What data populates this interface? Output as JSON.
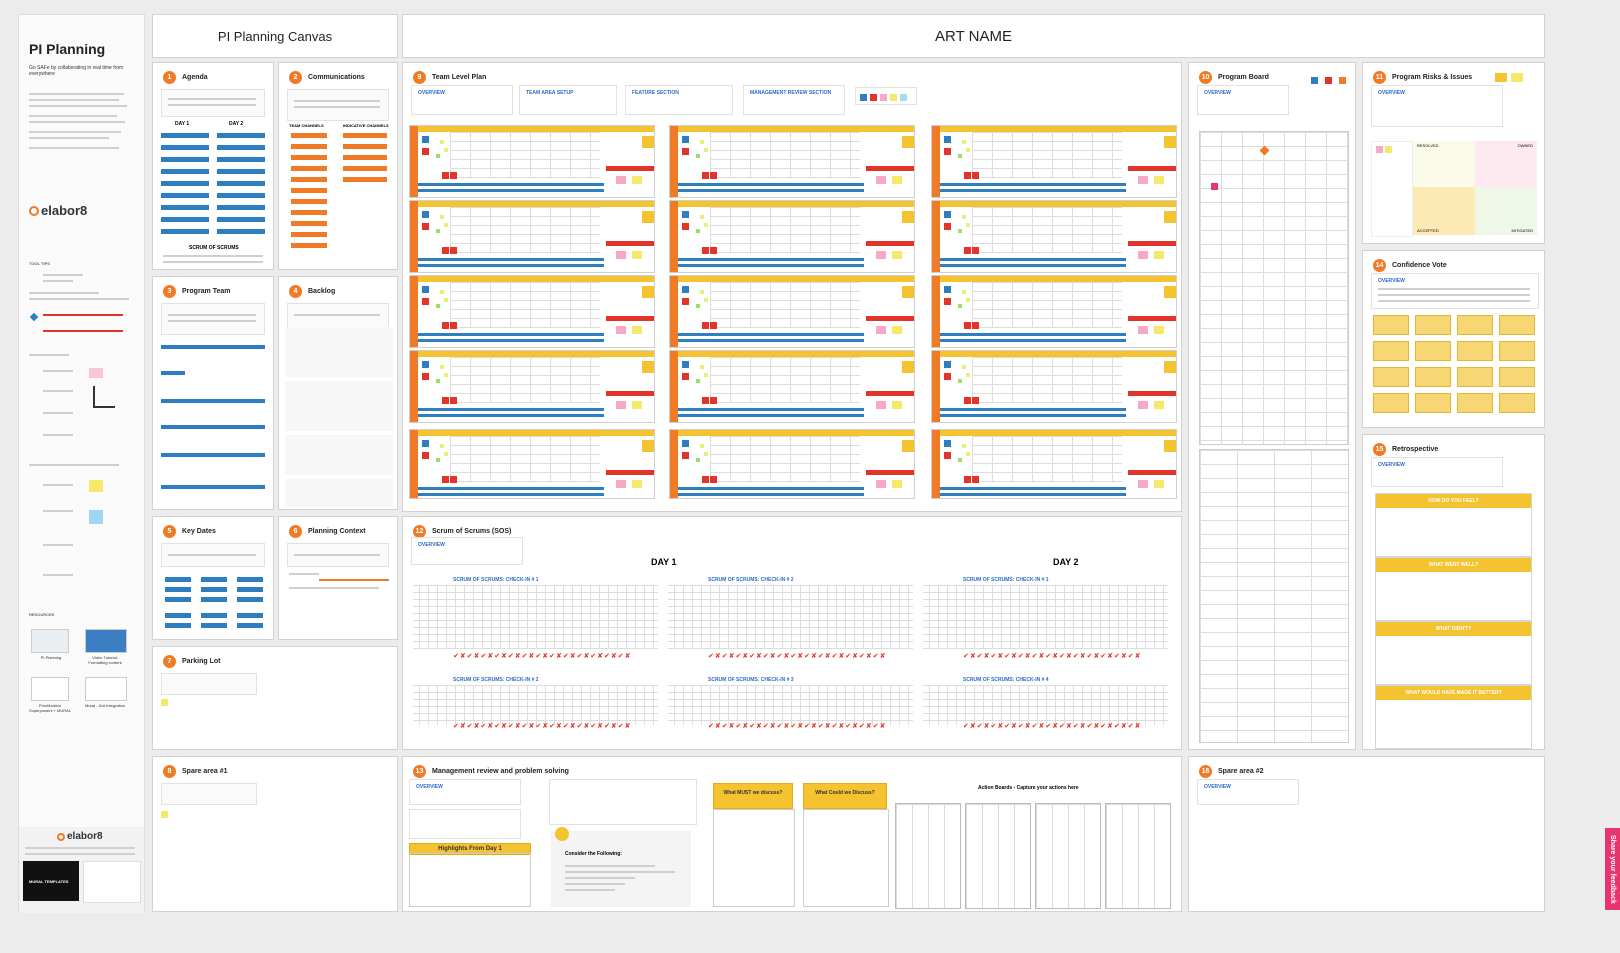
{
  "sidebar": {
    "title": "PI Planning",
    "subtitle": "Go SAFe by collaborating in real time from everywhere",
    "logo": "elabor8",
    "tool_tips_label": "TOOL TIPS",
    "resources_label": "RESOURCES",
    "resources": [
      "PI Planning",
      "Video Tutorial: Formatting content",
      "Prioritization Superpowers + MURAL",
      "Mural - Jira Integration"
    ],
    "footer_logo": "elabor8",
    "mural_templates": "MURAL TEMPLATES"
  },
  "header": {
    "canvas_title": "PI Planning Canvas",
    "art_name": "ART NAME"
  },
  "panels": {
    "agenda": {
      "num": "1",
      "title": "Agenda",
      "day1": "DAY 1",
      "day2": "DAY 2",
      "scrum": "SCRUM OF SCRUMS"
    },
    "communications": {
      "num": "2",
      "title": "Communications",
      "team_channels": "TEAM CHANNELS",
      "indicative": "INDICATIVE CHANNELS"
    },
    "program_team": {
      "num": "3",
      "title": "Program Team"
    },
    "backlog": {
      "num": "4",
      "title": "Backlog"
    },
    "key_dates": {
      "num": "5",
      "title": "Key Dates"
    },
    "planning_context": {
      "num": "6",
      "title": "Planning Context"
    },
    "parking_lot": {
      "num": "7",
      "title": "Parking Lot"
    },
    "spare1": {
      "num": "8",
      "title": "Spare area #1"
    },
    "team_plan": {
      "num": "9",
      "title": "Team Level Plan",
      "overview": "OVERVIEW",
      "setup": "TEAM AREA SETUP",
      "feature": "FEATURE SECTION",
      "mgmt": "MANAGEMENT REVIEW SECTION"
    },
    "program_board": {
      "num": "10",
      "title": "Program Board",
      "overview": "OVERVIEW"
    },
    "risks": {
      "num": "11",
      "title": "Program Risks & Issues",
      "overview": "OVERVIEW",
      "resolved": "RESOLVED",
      "owned": "OWNED",
      "accepted": "ACCEPTED",
      "mitigated": "MITIGATED"
    },
    "sos": {
      "num": "12",
      "title": "Scrum of Scrums (SOS)",
      "overview": "OVERVIEW",
      "day1": "DAY 1",
      "day2": "DAY 2",
      "checkins": [
        "SCRUM OF SCRUMS: CHECK-IN # 1",
        "SCRUM OF SCRUMS: CHECK-IN # 2",
        "SCRUM OF SCRUMS: CHECK-IN # 1",
        "SCRUM OF SCRUMS: CHECK-IN # 2",
        "SCRUM OF SCRUMS: CHECK-IN # 3",
        "SCRUM OF SCRUMS: CHECK-IN # 4"
      ]
    },
    "mgmt_review": {
      "num": "13",
      "title": "Management review and problem solving",
      "overview": "OVERVIEW",
      "highlights": "Highlights From Day 1",
      "must": "What MUST we discuss?",
      "could": "What Could we Discuss?",
      "action_boards": "Action Boards - Capture your actions here",
      "consider": "Consider the Following:"
    },
    "confidence": {
      "num": "14",
      "title": "Confidence Vote",
      "overview": "OVERVIEW"
    },
    "retro": {
      "num": "15",
      "title": "Retrospective",
      "overview": "OVERVIEW",
      "boxes": [
        "HOW DO YOU FEEL?",
        "WHAT WENT WELL?",
        "WHAT DIDN'T?",
        "WHAT WOULD HAVE MADE IT BETTER?"
      ]
    },
    "spare2": {
      "num": "16",
      "title": "Spare area #2",
      "overview": "OVERVIEW"
    }
  },
  "feedback_tab": "Share your feedback",
  "colors": {
    "accent": "#f07b27",
    "yellow": "#f5c330",
    "blue": "#2d7fc1",
    "red": "#e2342a",
    "pink": "#e8356f"
  }
}
